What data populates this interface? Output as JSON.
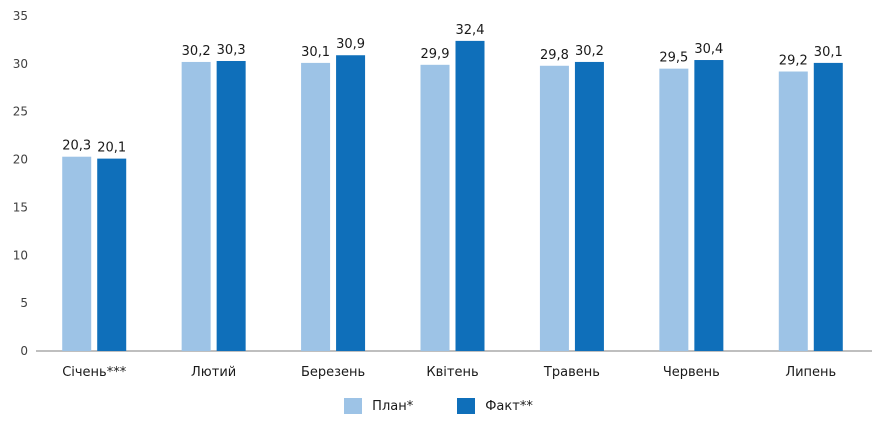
{
  "colors": {
    "plan": "#9dc3e6",
    "fact": "#0f6fba",
    "axis": "#7f7f7f"
  },
  "chart_data": {
    "type": "bar",
    "categories": [
      "Січень***",
      "Лютий",
      "Березень",
      "Квітень",
      "Травень",
      "Червень",
      "Липень"
    ],
    "series": [
      {
        "name": "План*",
        "values": [
          20.3,
          30.2,
          30.1,
          29.9,
          29.8,
          29.5,
          29.2
        ],
        "labels": [
          "20,3",
          "30,2",
          "30,1",
          "29,9",
          "29,8",
          "29,5",
          "29,2"
        ]
      },
      {
        "name": "Факт**",
        "values": [
          20.1,
          30.3,
          30.9,
          32.4,
          30.2,
          30.4,
          30.1
        ],
        "labels": [
          "20,1",
          "30,3",
          "30,9",
          "32,4",
          "30,2",
          "30,4",
          "30,1"
        ]
      }
    ],
    "ylim": [
      0,
      35
    ],
    "yticks": [
      0,
      5,
      10,
      15,
      20,
      25,
      30,
      35
    ],
    "grid": false,
    "legend_position": "bottom",
    "title": "",
    "xlabel": "",
    "ylabel": ""
  }
}
